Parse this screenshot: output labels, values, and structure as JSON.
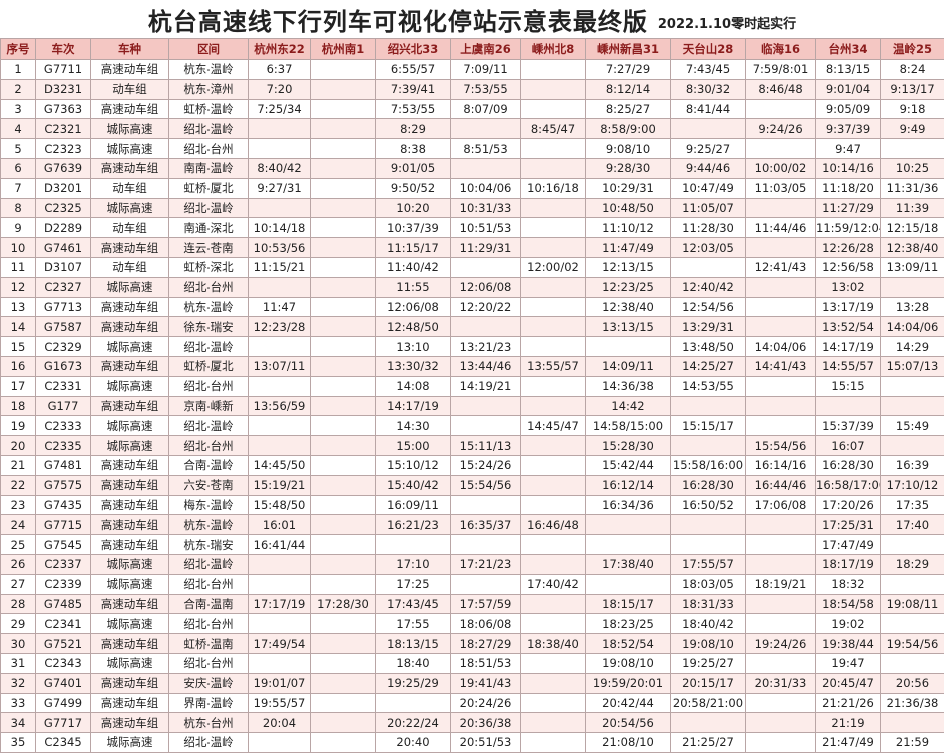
{
  "title": "杭台高速线下行列车可视化停站示意表最终版",
  "note": "2022.1.10零时起实行",
  "table": {
    "header": [
      "序号",
      "车次",
      "车种",
      "区间",
      "杭州东22",
      "杭州南1",
      "绍兴北33",
      "上虞南26",
      "嵊州北8",
      "嵊州新昌31",
      "天台山28",
      "临海16",
      "台州34",
      "温岭25"
    ],
    "rows": [
      [
        1,
        "G7711",
        "高速动车组",
        "杭东-温岭",
        "6:37",
        null,
        "6:55/57",
        "7:09/11",
        null,
        "7:27/29",
        "7:43/45",
        "7:59/8:01",
        "8:13/15",
        "8:24"
      ],
      [
        2,
        "D3231",
        "动车组",
        "杭东-漳州",
        "7:20",
        null,
        "7:39/41",
        "7:53/55",
        null,
        "8:12/14",
        "8:30/32",
        "8:46/48",
        "9:01/04",
        "9:13/17"
      ],
      [
        3,
        "G7363",
        "高速动车组",
        "虹桥-温岭",
        "7:25/34",
        null,
        "7:53/55",
        "8:07/09",
        null,
        "8:25/27",
        "8:41/44",
        null,
        "9:05/09",
        "9:18"
      ],
      [
        4,
        "C2321",
        "城际高速",
        "绍北-温岭",
        null,
        null,
        "8:29",
        null,
        "8:45/47",
        "8:58/9:00",
        null,
        "9:24/26",
        "9:37/39",
        "9:49"
      ],
      [
        5,
        "C2323",
        "城际高速",
        "绍北-台州",
        null,
        null,
        "8:38",
        "8:51/53",
        null,
        "9:08/10",
        "9:25/27",
        null,
        "9:47",
        null
      ],
      [
        6,
        "G7639",
        "高速动车组",
        "南南-温岭",
        "8:40/42",
        null,
        "9:01/05",
        null,
        null,
        "9:28/30",
        "9:44/46",
        "10:00/02",
        "10:14/16",
        "10:25"
      ],
      [
        7,
        "D3201",
        "动车组",
        "虹桥-厦北",
        "9:27/31",
        null,
        "9:50/52",
        "10:04/06",
        "10:16/18",
        "10:29/31",
        "10:47/49",
        "11:03/05",
        "11:18/20",
        "11:31/36"
      ],
      [
        8,
        "C2325",
        "城际高速",
        "绍北-温岭",
        null,
        null,
        "10:20",
        "10:31/33",
        null,
        "10:48/50",
        "11:05/07",
        null,
        "11:27/29",
        "11:39"
      ],
      [
        9,
        "D2289",
        "动车组",
        "南通-深北",
        "10:14/18",
        null,
        "10:37/39",
        "10:51/53",
        null,
        "11:10/12",
        "11:28/30",
        "11:44/46",
        "11:59/12:04",
        "12:15/18"
      ],
      [
        10,
        "G7461",
        "高速动车组",
        "连云-苍南",
        "10:53/56",
        null,
        "11:15/17",
        "11:29/31",
        null,
        "11:47/49",
        "12:03/05",
        null,
        "12:26/28",
        "12:38/40"
      ],
      [
        11,
        "D3107",
        "动车组",
        "虹桥-深北",
        "11:15/21",
        null,
        "11:40/42",
        null,
        "12:00/02",
        "12:13/15",
        null,
        "12:41/43",
        "12:56/58",
        "13:09/11"
      ],
      [
        12,
        "C2327",
        "城际高速",
        "绍北-台州",
        null,
        null,
        "11:55",
        "12:06/08",
        null,
        "12:23/25",
        "12:40/42",
        null,
        "13:02",
        null
      ],
      [
        13,
        "G7713",
        "高速动车组",
        "杭东-温岭",
        "11:47",
        null,
        "12:06/08",
        "12:20/22",
        null,
        "12:38/40",
        "12:54/56",
        null,
        "13:17/19",
        "13:28"
      ],
      [
        14,
        "G7587",
        "高速动车组",
        "徐东-瑞安",
        "12:23/28",
        null,
        "12:48/50",
        null,
        null,
        "13:13/15",
        "13:29/31",
        null,
        "13:52/54",
        "14:04/06"
      ],
      [
        15,
        "C2329",
        "城际高速",
        "绍北-温岭",
        null,
        null,
        "13:10",
        "13:21/23",
        null,
        null,
        "13:48/50",
        "14:04/06",
        "14:17/19",
        "14:29"
      ],
      [
        16,
        "G1673",
        "高速动车组",
        "虹桥-厦北",
        "13:07/11",
        null,
        "13:30/32",
        "13:44/46",
        "13:55/57",
        "14:09/11",
        "14:25/27",
        "14:41/43",
        "14:55/57",
        "15:07/13"
      ],
      [
        17,
        "C2331",
        "城际高速",
        "绍北-台州",
        null,
        null,
        "14:08",
        "14:19/21",
        null,
        "14:36/38",
        "14:53/55",
        null,
        "15:15",
        null
      ],
      [
        18,
        "G177",
        "高速动车组",
        "京南-嵊新",
        "13:56/59",
        null,
        "14:17/19",
        null,
        null,
        "14:42",
        null,
        null,
        null,
        null
      ],
      [
        19,
        "C2333",
        "城际高速",
        "绍北-温岭",
        null,
        null,
        "14:30",
        null,
        "14:45/47",
        "14:58/15:00",
        "15:15/17",
        null,
        "15:37/39",
        "15:49"
      ],
      [
        20,
        "C2335",
        "城际高速",
        "绍北-台州",
        null,
        null,
        "15:00",
        "15:11/13",
        null,
        "15:28/30",
        null,
        "15:54/56",
        "16:07",
        null
      ],
      [
        21,
        "G7481",
        "高速动车组",
        "合南-温岭",
        "14:45/50",
        null,
        "15:10/12",
        "15:24/26",
        null,
        "15:42/44",
        "15:58/16:00",
        "16:14/16",
        "16:28/30",
        "16:39"
      ],
      [
        22,
        "G7575",
        "高速动车组",
        "六安-苍南",
        "15:19/21",
        null,
        "15:40/42",
        "15:54/56",
        null,
        "16:12/14",
        "16:28/30",
        "16:44/46",
        "16:58/17:00",
        "17:10/12"
      ],
      [
        23,
        "G7435",
        "高速动车组",
        "梅东-温岭",
        "15:48/50",
        null,
        "16:09/11",
        null,
        null,
        "16:34/36",
        "16:50/52",
        "17:06/08",
        "17:20/26",
        "17:35"
      ],
      [
        24,
        "G7715",
        "高速动车组",
        "杭东-温岭",
        "16:01",
        null,
        "16:21/23",
        "16:35/37",
        "16:46/48",
        null,
        null,
        null,
        "17:25/31",
        "17:40"
      ],
      [
        25,
        "G7545",
        "高速动车组",
        "杭东-瑞安",
        "16:41/44",
        null,
        null,
        null,
        null,
        null,
        null,
        null,
        "17:47/49",
        null
      ],
      [
        26,
        "C2337",
        "城际高速",
        "绍北-温岭",
        null,
        null,
        "17:10",
        "17:21/23",
        null,
        "17:38/40",
        "17:55/57",
        null,
        "18:17/19",
        "18:29"
      ],
      [
        27,
        "C2339",
        "城际高速",
        "绍北-台州",
        null,
        null,
        "17:25",
        null,
        "17:40/42",
        null,
        "18:03/05",
        "18:19/21",
        "18:32",
        null
      ],
      [
        28,
        "G7485",
        "高速动车组",
        "合南-温南",
        "17:17/19",
        "17:28/30",
        "17:43/45",
        "17:57/59",
        null,
        "18:15/17",
        "18:31/33",
        null,
        "18:54/58",
        "19:08/11"
      ],
      [
        29,
        "C2341",
        "城际高速",
        "绍北-台州",
        null,
        null,
        "17:55",
        "18:06/08",
        null,
        "18:23/25",
        "18:40/42",
        null,
        "19:02",
        null
      ],
      [
        30,
        "G7521",
        "高速动车组",
        "虹桥-温南",
        "17:49/54",
        null,
        "18:13/15",
        "18:27/29",
        "18:38/40",
        "18:52/54",
        "19:08/10",
        "19:24/26",
        "19:38/44",
        "19:54/56"
      ],
      [
        31,
        "C2343",
        "城际高速",
        "绍北-台州",
        null,
        null,
        "18:40",
        "18:51/53",
        null,
        "19:08/10",
        "19:25/27",
        null,
        "19:47",
        null
      ],
      [
        32,
        "G7401",
        "高速动车组",
        "安庆-温岭",
        "19:01/07",
        null,
        "19:25/29",
        "19:41/43",
        null,
        "19:59/20:01",
        "20:15/17",
        "20:31/33",
        "20:45/47",
        "20:56"
      ],
      [
        33,
        "G7499",
        "高速动车组",
        "界南-温岭",
        "19:55/57",
        null,
        null,
        "20:24/26",
        null,
        "20:42/44",
        "20:58/21:00",
        null,
        "21:21/26",
        "21:36/38"
      ],
      [
        34,
        "G7717",
        "高速动车组",
        "杭东-台州",
        "20:04",
        null,
        "20:22/24",
        "20:36/38",
        null,
        "20:54/56",
        null,
        null,
        "21:19",
        null
      ],
      [
        35,
        "C2345",
        "城际高速",
        "绍北-温岭",
        null,
        null,
        "20:40",
        "20:51/53",
        null,
        "21:08/10",
        "21:25/27",
        null,
        "21:47/49",
        "21:59"
      ]
    ]
  }
}
